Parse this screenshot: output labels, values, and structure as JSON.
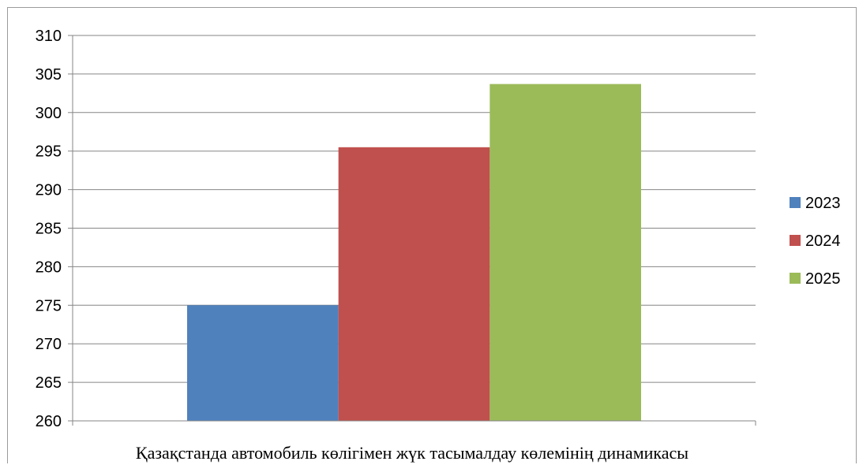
{
  "chart_data": {
    "type": "bar",
    "categories": [
      "Қазақстанда автомобиль көлігімен жүк тасымалдау көлемінің динамикасы"
    ],
    "series": [
      {
        "name": "2023",
        "values": [
          275
        ],
        "color": "#4f81bd"
      },
      {
        "name": "2024",
        "values": [
          295.5
        ],
        "color": "#c0504d"
      },
      {
        "name": "2025",
        "values": [
          303.7
        ],
        "color": "#9bbb59"
      }
    ],
    "ylim": [
      260,
      310
    ],
    "yticks": [
      "260",
      "265",
      "270",
      "275",
      "280",
      "285",
      "290",
      "295",
      "300",
      "305",
      "310"
    ],
    "grid": true,
    "legend": "right"
  }
}
